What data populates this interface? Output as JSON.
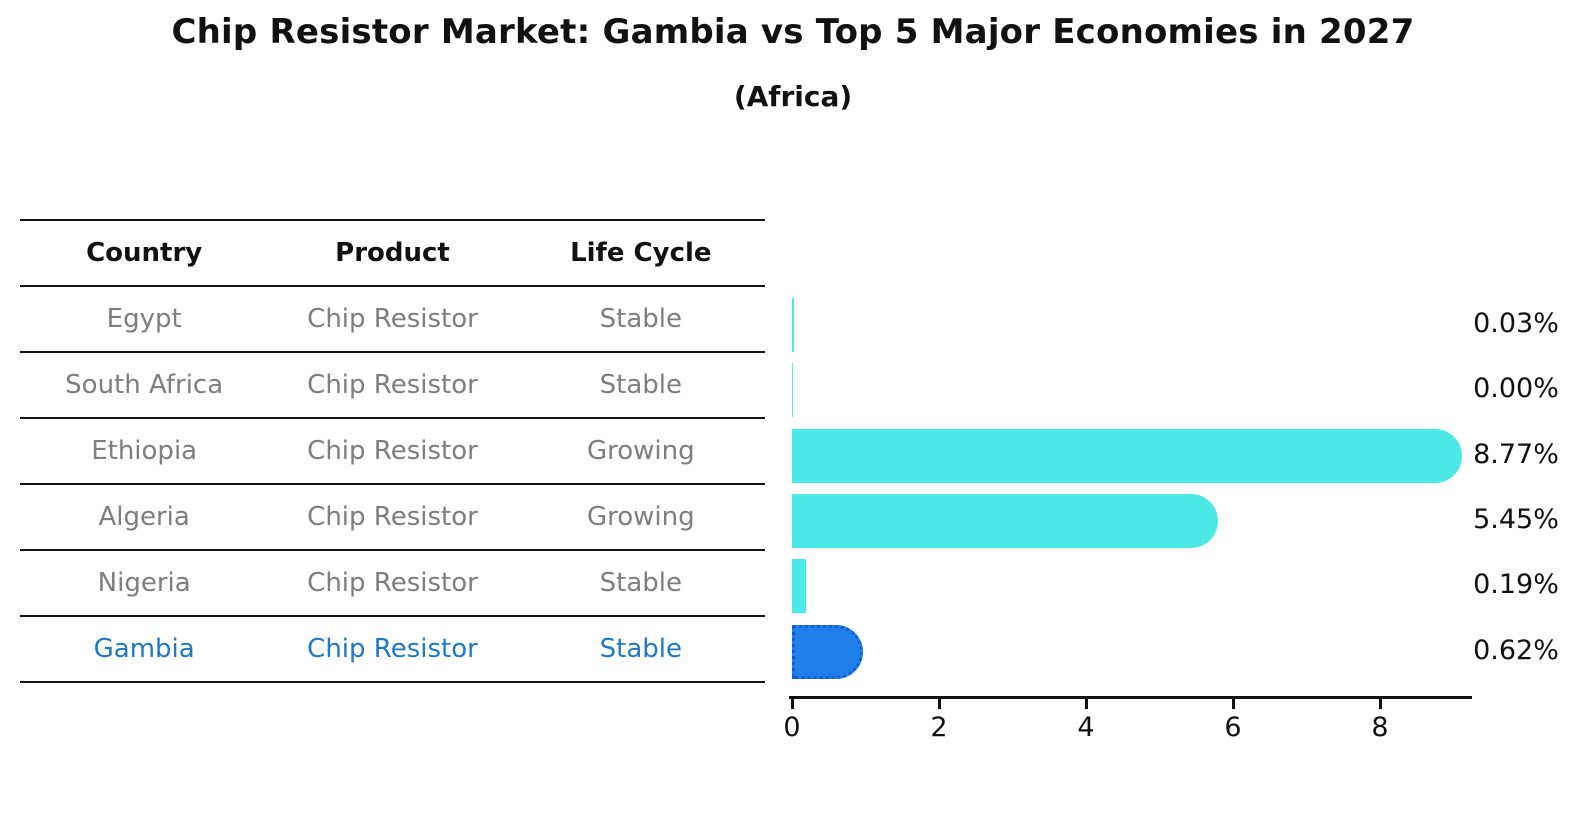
{
  "title": "Chip Resistor Market: Gambia vs Top 5 Major Economies in 2027",
  "subtitle": "(Africa)",
  "table": {
    "columns": [
      "Country",
      "Product",
      "Life Cycle"
    ],
    "rows": [
      {
        "country": "Egypt",
        "product": "Chip Resistor",
        "life_cycle": "Stable",
        "highlight": false
      },
      {
        "country": "South Africa",
        "product": "Chip Resistor",
        "life_cycle": "Stable",
        "highlight": false
      },
      {
        "country": "Ethiopia",
        "product": "Chip Resistor",
        "life_cycle": "Growing",
        "highlight": false
      },
      {
        "country": "Algeria",
        "product": "Chip Resistor",
        "life_cycle": "Growing",
        "highlight": false
      },
      {
        "country": "Nigeria",
        "product": "Chip Resistor",
        "life_cycle": "Stable",
        "highlight": false
      },
      {
        "country": "Gambia",
        "product": "Chip Resistor",
        "life_cycle": "Stable",
        "highlight": true
      }
    ]
  },
  "chart_data": {
    "type": "bar",
    "orientation": "horizontal",
    "title": "Chip Resistor Market: Gambia vs Top 5 Major Economies in 2027",
    "subtitle": "(Africa)",
    "categories": [
      "Egypt",
      "South Africa",
      "Ethiopia",
      "Algeria",
      "Nigeria",
      "Gambia"
    ],
    "values": [
      0.03,
      0.0,
      8.77,
      5.45,
      0.19,
      0.62
    ],
    "value_labels": [
      "0.03%",
      "0.00%",
      "8.77%",
      "5.45%",
      "0.19%",
      "0.62%"
    ],
    "xticks": [
      "0",
      "2",
      "4",
      "6",
      "8"
    ],
    "xtick_values": [
      0,
      2,
      4,
      6,
      8
    ],
    "xlim": [
      0,
      9.2
    ],
    "grid": false,
    "legend": "none",
    "bar_color": "#4de9e6",
    "highlight_bar_color": "#1f80ed",
    "highlight_border_color": "#1161c9",
    "highlight_text_color": "#1e78c8",
    "highlight_index": 5
  }
}
